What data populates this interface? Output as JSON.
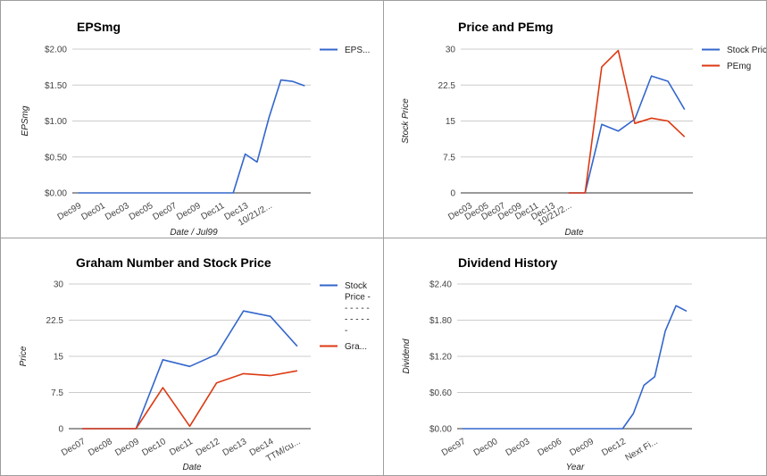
{
  "colors": {
    "blue": "#3366cc",
    "red": "#dc3912",
    "grid": "#cccccc",
    "baseline": "#333333"
  },
  "chart_data": [
    {
      "type": "line",
      "title": "EPSmg",
      "xlabel": "Date / Jul99",
      "ylabel": "EPSmg",
      "ylim": [
        0,
        2
      ],
      "yticks": [
        "$0.00",
        "$0.50",
        "$1.00",
        "$1.50",
        "$2.00"
      ],
      "x_tick_labels": [
        "Dec99",
        "Dec01",
        "Dec03",
        "Dec05",
        "Dec07",
        "Dec09",
        "Dec11",
        "Dec13",
        "10/21/2..."
      ],
      "legend": [
        "EPS..."
      ],
      "legend_position": "right",
      "grid": true,
      "series": [
        {
          "name": "EPS...",
          "color": "blue",
          "values": [
            0,
            0,
            0,
            0,
            0,
            0,
            0,
            0,
            0,
            0,
            0,
            0,
            0,
            0,
            0.54,
            0.43,
            1.05,
            1.57,
            1.55,
            1.49
          ]
        }
      ]
    },
    {
      "type": "line",
      "title": "Price and PEmg",
      "xlabel": "Date",
      "ylabel": "Stock Price",
      "ylim": [
        0,
        30
      ],
      "yticks": [
        "0",
        "7.5",
        "15",
        "22.5",
        "30"
      ],
      "x_tick_labels": [
        "Dec03",
        "Dec05",
        "Dec07",
        "Dec09",
        "Dec11",
        "Dec13",
        "10/21/2..."
      ],
      "legend": [
        "Stock Price",
        "PEmg"
      ],
      "legend_position": "right",
      "grid": true,
      "series": [
        {
          "name": "Stock Price",
          "color": "blue",
          "values": [
            null,
            null,
            null,
            null,
            null,
            null,
            0,
            0,
            14.3,
            12.9,
            15.4,
            24.4,
            23.3,
            17.4
          ]
        },
        {
          "name": "PEmg",
          "color": "red",
          "values": [
            null,
            null,
            null,
            null,
            null,
            null,
            0,
            0,
            26.3,
            29.7,
            14.5,
            15.6,
            15.0,
            11.7
          ]
        }
      ]
    },
    {
      "type": "line",
      "title": "Graham Number and Stock Price",
      "xlabel": "Date",
      "ylabel": "Price",
      "ylim": [
        0,
        30
      ],
      "yticks": [
        "0",
        "7.5",
        "15",
        "22.5",
        "30"
      ],
      "x_tick_labels": [
        "Dec07",
        "Dec08",
        "Dec09",
        "Dec10",
        "Dec11",
        "Dec12",
        "Dec13",
        "Dec14",
        "TTM/cu..."
      ],
      "legend": [
        "Stock",
        "Price -",
        "- - - - -",
        "- - - - -",
        "-",
        "Gra..."
      ],
      "legend_position": "right",
      "grid": true,
      "series": [
        {
          "name": "Stock Price",
          "color": "blue",
          "values": [
            0,
            0,
            0,
            14.3,
            12.9,
            15.4,
            24.4,
            23.3,
            17.1
          ]
        },
        {
          "name": "Gra...",
          "color": "red",
          "values": [
            0,
            0,
            0,
            8.5,
            0.5,
            9.5,
            11.4,
            11.0,
            12.0
          ]
        }
      ]
    },
    {
      "type": "line",
      "title": "Dividend History",
      "xlabel": "Year",
      "ylabel": "Dividend",
      "ylim": [
        0,
        2.4
      ],
      "yticks": [
        "$0.00",
        "$0.60",
        "$1.20",
        "$1.80",
        "$2.40"
      ],
      "x_tick_labels": [
        "Dec97",
        "Dec00",
        "Dec03",
        "Dec06",
        "Dec09",
        "Dec12",
        "Next Fi..."
      ],
      "legend": [],
      "legend_position": "none",
      "grid": true,
      "series": [
        {
          "name": "",
          "color": "blue",
          "values": [
            0,
            0,
            0,
            0,
            0,
            0,
            0,
            0,
            0,
            0,
            0,
            0,
            0,
            0,
            0,
            0,
            0.25,
            0.72,
            0.86,
            1.62,
            2.04,
            1.95
          ]
        }
      ]
    }
  ]
}
